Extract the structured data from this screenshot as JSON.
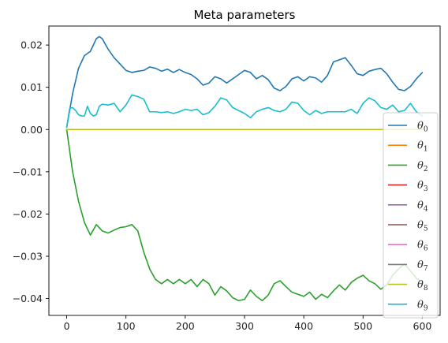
{
  "chart_data": {
    "type": "line",
    "title": "Meta parameters",
    "xlabel": "",
    "ylabel": "",
    "xlim": [
      -30,
      630
    ],
    "ylim": [
      -0.044,
      0.0245
    ],
    "xticks": [
      0,
      100,
      200,
      300,
      400,
      500,
      600
    ],
    "xtick_labels": [
      "0",
      "100",
      "200",
      "300",
      "400",
      "500",
      "600"
    ],
    "yticks": [
      0.02,
      0.01,
      0.0,
      -0.01,
      -0.02,
      -0.03,
      -0.04
    ],
    "ytick_labels": [
      "0.02",
      "0.01",
      "0.00",
      "−0.01",
      "−0.02",
      "−0.03",
      "−0.04"
    ],
    "grid": false,
    "legend_position": "right",
    "series": [
      {
        "name": "θ0",
        "base": "θ",
        "sub": "0",
        "color": "#1f77b4",
        "x": [
          0,
          10,
          20,
          30,
          40,
          50,
          55,
          60,
          70,
          80,
          90,
          100,
          110,
          120,
          130,
          140,
          150,
          160,
          170,
          180,
          190,
          200,
          210,
          220,
          230,
          240,
          250,
          260,
          270,
          280,
          290,
          300,
          310,
          320,
          330,
          340,
          350,
          360,
          370,
          380,
          390,
          400,
          410,
          420,
          430,
          440,
          450,
          460,
          470,
          480,
          490,
          500,
          510,
          520,
          530,
          540,
          550,
          560,
          570,
          580,
          590,
          600
        ],
        "y": [
          0.0005,
          0.0085,
          0.0145,
          0.0175,
          0.0185,
          0.0215,
          0.022,
          0.0215,
          0.019,
          0.017,
          0.0155,
          0.014,
          0.0135,
          0.0138,
          0.014,
          0.0148,
          0.0145,
          0.0138,
          0.0143,
          0.0135,
          0.0142,
          0.0135,
          0.013,
          0.012,
          0.0105,
          0.011,
          0.0125,
          0.012,
          0.011,
          0.012,
          0.013,
          0.014,
          0.0135,
          0.012,
          0.0128,
          0.0118,
          0.0098,
          0.0092,
          0.0102,
          0.012,
          0.0125,
          0.0115,
          0.0125,
          0.0122,
          0.0112,
          0.0128,
          0.016,
          0.0165,
          0.017,
          0.0152,
          0.0132,
          0.0128,
          0.0138,
          0.0142,
          0.0145,
          0.0132,
          0.0112,
          0.0095,
          0.0092,
          0.0102,
          0.012,
          0.0135
        ]
      },
      {
        "name": "θ1",
        "base": "θ",
        "sub": "1",
        "color": "#ff7f0e",
        "x": [
          0,
          600
        ],
        "y": [
          0,
          0
        ]
      },
      {
        "name": "θ2",
        "base": "θ",
        "sub": "2",
        "color": "#2ca02c",
        "x": [
          0,
          10,
          20,
          30,
          40,
          50,
          60,
          70,
          80,
          90,
          100,
          110,
          120,
          130,
          140,
          150,
          160,
          170,
          180,
          190,
          200,
          210,
          220,
          230,
          240,
          250,
          260,
          270,
          280,
          290,
          300,
          310,
          320,
          330,
          340,
          350,
          360,
          370,
          380,
          390,
          400,
          410,
          420,
          430,
          440,
          450,
          460,
          470,
          480,
          490,
          500,
          510,
          520,
          530,
          540,
          550,
          560,
          570,
          580,
          590,
          600
        ],
        "y": [
          0,
          -0.01,
          -0.017,
          -0.022,
          -0.025,
          -0.0225,
          -0.024,
          -0.0245,
          -0.0238,
          -0.0232,
          -0.023,
          -0.0225,
          -0.024,
          -0.029,
          -0.033,
          -0.0355,
          -0.0365,
          -0.0355,
          -0.0365,
          -0.0355,
          -0.0365,
          -0.0355,
          -0.0372,
          -0.0355,
          -0.0365,
          -0.0392,
          -0.0372,
          -0.0382,
          -0.0398,
          -0.0405,
          -0.0402,
          -0.038,
          -0.0395,
          -0.0405,
          -0.0392,
          -0.0365,
          -0.0358,
          -0.0372,
          -0.0385,
          -0.039,
          -0.0395,
          -0.0385,
          -0.0402,
          -0.039,
          -0.0398,
          -0.0382,
          -0.0368,
          -0.038,
          -0.0362,
          -0.0352,
          -0.0345,
          -0.0358,
          -0.0365,
          -0.0378,
          -0.0368,
          -0.0345,
          -0.033,
          -0.0318,
          -0.0335,
          -0.0352,
          -0.0362
        ]
      },
      {
        "name": "θ3",
        "base": "θ",
        "sub": "3",
        "color": "#d62728",
        "x": [
          0,
          600
        ],
        "y": [
          0,
          0
        ]
      },
      {
        "name": "θ4",
        "base": "θ",
        "sub": "4",
        "color": "#9467bd",
        "x": [
          0,
          600
        ],
        "y": [
          0,
          0
        ]
      },
      {
        "name": "θ5",
        "base": "θ",
        "sub": "5",
        "color": "#8c564b",
        "x": [
          0,
          600
        ],
        "y": [
          0,
          0
        ]
      },
      {
        "name": "θ6",
        "base": "θ",
        "sub": "6",
        "color": "#e377c2",
        "x": [
          0,
          600
        ],
        "y": [
          0,
          0
        ]
      },
      {
        "name": "θ7",
        "base": "θ",
        "sub": "7",
        "color": "#7f7f7f",
        "x": [
          0,
          600
        ],
        "y": [
          0,
          0
        ]
      },
      {
        "name": "θ8",
        "base": "θ",
        "sub": "8",
        "color": "#bcbd22",
        "x": [
          0,
          600
        ],
        "y": [
          0,
          0
        ]
      },
      {
        "name": "θ9",
        "base": "θ",
        "sub": "9",
        "color": "#17becf",
        "x": [
          0,
          5,
          10,
          15,
          20,
          25,
          30,
          35,
          40,
          45,
          50,
          55,
          60,
          70,
          80,
          90,
          100,
          110,
          120,
          130,
          140,
          150,
          160,
          170,
          180,
          190,
          200,
          210,
          220,
          230,
          240,
          250,
          260,
          270,
          280,
          290,
          300,
          310,
          320,
          330,
          340,
          350,
          360,
          370,
          380,
          390,
          400,
          410,
          420,
          430,
          440,
          450,
          460,
          470,
          480,
          490,
          500,
          510,
          520,
          530,
          540,
          550,
          560,
          570,
          580,
          590,
          600
        ],
        "y": [
          0.0005,
          0.005,
          0.0052,
          0.0045,
          0.0035,
          0.0032,
          0.0032,
          0.0055,
          0.0038,
          0.0032,
          0.0035,
          0.0055,
          0.006,
          0.0058,
          0.0062,
          0.0042,
          0.0058,
          0.0082,
          0.0078,
          0.0072,
          0.0042,
          0.0042,
          0.004,
          0.0042,
          0.0038,
          0.0042,
          0.0048,
          0.0045,
          0.0048,
          0.0035,
          0.004,
          0.0055,
          0.0075,
          0.007,
          0.0052,
          0.0045,
          0.0038,
          0.0028,
          0.0042,
          0.0048,
          0.0052,
          0.0045,
          0.0042,
          0.0048,
          0.0065,
          0.0062,
          0.0045,
          0.0035,
          0.0045,
          0.0038,
          0.0042,
          0.0042,
          0.0042,
          0.0042,
          0.0048,
          0.0038,
          0.0062,
          0.0075,
          0.0068,
          0.0052,
          0.0048,
          0.0058,
          0.0042,
          0.0045,
          0.0062,
          0.0042,
          0.0032
        ]
      }
    ]
  }
}
